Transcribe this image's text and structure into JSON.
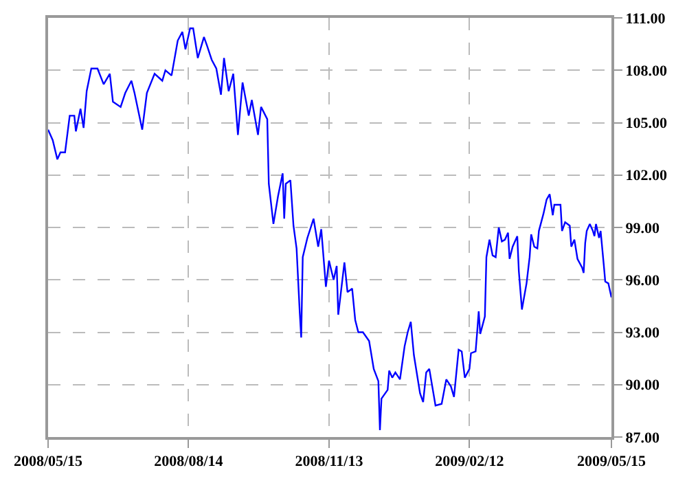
{
  "chart_data": {
    "type": "line",
    "x": [
      "2008-05-15",
      "2008-05-18",
      "2008-05-21",
      "2008-05-23",
      "2008-05-26",
      "2008-05-29",
      "2008-06-01",
      "2008-06-02",
      "2008-06-05",
      "2008-06-07",
      "2008-06-09",
      "2008-06-12",
      "2008-06-16",
      "2008-06-20",
      "2008-06-24",
      "2008-06-26",
      "2008-07-01",
      "2008-07-04",
      "2008-07-08",
      "2008-07-10",
      "2008-07-15",
      "2008-07-18",
      "2008-07-23",
      "2008-07-28",
      "2008-07-30",
      "2008-08-03",
      "2008-08-07",
      "2008-08-10",
      "2008-08-12",
      "2008-08-15",
      "2008-08-17",
      "2008-08-20",
      "2008-08-24",
      "2008-08-26",
      "2008-08-29",
      "2008-09-01",
      "2008-09-04",
      "2008-09-06",
      "2008-09-09",
      "2008-09-12",
      "2008-09-15",
      "2008-09-18",
      "2008-09-22",
      "2008-09-24",
      "2008-09-28",
      "2008-09-30",
      "2008-10-04",
      "2008-10-05",
      "2008-10-08",
      "2008-10-11",
      "2008-10-14",
      "2008-10-15",
      "2008-10-16",
      "2008-10-19",
      "2008-10-21",
      "2008-10-23",
      "2008-10-25",
      "2008-10-26",
      "2008-10-27",
      "2008-10-30",
      "2008-11-03",
      "2008-11-06",
      "2008-11-08",
      "2008-11-11",
      "2008-11-13",
      "2008-11-16",
      "2008-11-18",
      "2008-11-19",
      "2008-11-23",
      "2008-11-25",
      "2008-11-28",
      "2008-11-30",
      "2008-12-02",
      "2008-12-05",
      "2008-12-09",
      "2008-12-12",
      "2008-12-15",
      "2008-12-16",
      "2008-12-17",
      "2008-12-21",
      "2008-12-22",
      "2008-12-24",
      "2008-12-26",
      "2008-12-29",
      "2009-01-01",
      "2009-01-03",
      "2009-01-05",
      "2009-01-07",
      "2009-01-11",
      "2009-01-13",
      "2009-01-15",
      "2009-01-17",
      "2009-01-21",
      "2009-01-25",
      "2009-01-28",
      "2009-01-31",
      "2009-02-02",
      "2009-02-05",
      "2009-02-07",
      "2009-02-09",
      "2009-02-12",
      "2009-02-13",
      "2009-02-16",
      "2009-02-17",
      "2009-02-18",
      "2009-02-19",
      "2009-02-22",
      "2009-02-23",
      "2009-02-25",
      "2009-02-27",
      "2009-03-01",
      "2009-03-03",
      "2009-03-05",
      "2009-03-07",
      "2009-03-09",
      "2009-03-10",
      "2009-03-12",
      "2009-03-15",
      "2009-03-16",
      "2009-03-18",
      "2009-03-21",
      "2009-03-23",
      "2009-03-24",
      "2009-03-26",
      "2009-03-28",
      "2009-03-29",
      "2009-04-01",
      "2009-04-03",
      "2009-04-05",
      "2009-04-07",
      "2009-04-08",
      "2009-04-12",
      "2009-04-13",
      "2009-04-15",
      "2009-04-18",
      "2009-04-19",
      "2009-04-21",
      "2009-04-23",
      "2009-04-26",
      "2009-04-27",
      "2009-04-28",
      "2009-04-29",
      "2009-05-01",
      "2009-05-03",
      "2009-05-04",
      "2009-05-05",
      "2009-05-07",
      "2009-05-08",
      "2009-05-10",
      "2009-05-11",
      "2009-05-13",
      "2009-05-15"
    ],
    "series": [
      {
        "color": "#0000ff",
        "values": [
          104.6,
          104.0,
          102.9,
          103.3,
          103.3,
          105.4,
          105.4,
          104.5,
          105.8,
          104.7,
          106.8,
          108.1,
          108.1,
          107.2,
          107.8,
          106.2,
          105.9,
          106.7,
          107.4,
          106.7,
          104.6,
          106.7,
          107.8,
          107.4,
          108.0,
          107.7,
          109.7,
          110.2,
          109.2,
          110.4,
          110.4,
          108.7,
          109.9,
          109.4,
          108.6,
          108.1,
          106.6,
          108.7,
          106.8,
          107.8,
          104.3,
          107.3,
          105.4,
          106.3,
          104.3,
          105.9,
          105.2,
          101.5,
          99.2,
          100.8,
          102.1,
          99.5,
          101.5,
          101.7,
          99.1,
          97.8,
          94.2,
          92.7,
          97.3,
          98.4,
          99.5,
          97.9,
          98.9,
          95.6,
          97.1,
          96.0,
          96.8,
          94.0,
          97.0,
          95.3,
          95.5,
          93.7,
          93.0,
          93.0,
          92.5,
          90.9,
          90.2,
          87.4,
          89.2,
          89.7,
          90.8,
          90.4,
          90.7,
          90.3,
          92.2,
          93.0,
          93.6,
          91.7,
          89.5,
          89.0,
          90.7,
          90.9,
          88.8,
          88.9,
          90.3,
          89.9,
          89.3,
          92.0,
          91.9,
          90.4,
          90.9,
          91.8,
          91.9,
          93.0,
          94.2,
          92.9,
          93.9,
          97.3,
          98.3,
          97.4,
          97.3,
          99.0,
          98.2,
          98.3,
          98.7,
          97.2,
          97.9,
          98.5,
          96.5,
          94.3,
          95.8,
          97.3,
          98.6,
          97.9,
          97.8,
          98.8,
          99.8,
          100.6,
          100.9,
          99.7,
          100.3,
          100.3,
          98.8,
          99.3,
          99.1,
          97.9,
          98.3,
          97.2,
          96.7,
          96.4,
          98.1,
          98.8,
          99.2,
          98.8,
          98.5,
          99.2,
          98.4,
          98.8,
          96.9,
          95.9,
          95.8,
          95.0
        ]
      }
    ],
    "xlim": [
      "2008-05-15",
      "2009-05-15"
    ],
    "xticks": [
      {
        "value": "2008-05-15",
        "label": "2008/05/15"
      },
      {
        "value": "2008-08-14",
        "label": "2008/08/14"
      },
      {
        "value": "2008-11-13",
        "label": "2008/11/13"
      },
      {
        "value": "2009-02-12",
        "label": "2009/02/12"
      },
      {
        "value": "2009-05-15",
        "label": "2009/05/15"
      }
    ],
    "ylim": [
      87,
      111
    ],
    "yticks": [
      {
        "value": 87,
        "label": "87.00"
      },
      {
        "value": 90,
        "label": "90.00"
      },
      {
        "value": 93,
        "label": "93.00"
      },
      {
        "value": 96,
        "label": "96.00"
      },
      {
        "value": 99,
        "label": "99.00"
      },
      {
        "value": 102,
        "label": "102.00"
      },
      {
        "value": 105,
        "label": "105.00"
      },
      {
        "value": 108,
        "label": "108.00"
      },
      {
        "value": 111,
        "label": "111.00"
      }
    ],
    "grid": true,
    "marker": "none",
    "line_style": "solid"
  }
}
